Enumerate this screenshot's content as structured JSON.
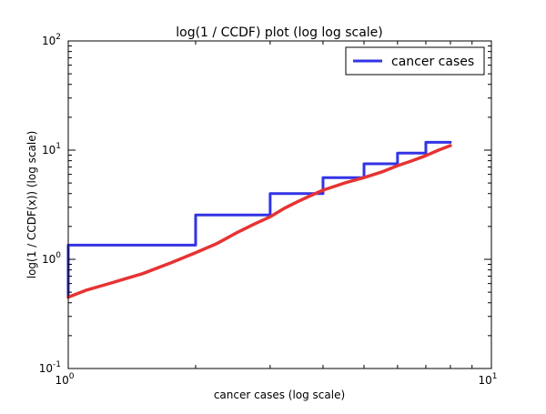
{
  "chart_data": {
    "type": "line",
    "title": "log(1 / CCDF) plot (log log scale)",
    "xlabel": "cancer cases (log scale)",
    "ylabel": "log(1 / CCDF(x)) (log scale)",
    "xscale": "log",
    "yscale": "log",
    "xlim": [
      1,
      10
    ],
    "ylim": [
      0.1,
      100
    ],
    "grid": false,
    "legend_position": "top-right",
    "x_ticks": [
      {
        "value": 1,
        "base": "10",
        "exp": "0"
      },
      {
        "value": 10,
        "base": "10",
        "exp": "1"
      }
    ],
    "y_ticks": [
      {
        "value": 0.1,
        "base": "10",
        "exp": "-1"
      },
      {
        "value": 1,
        "base": "10",
        "exp": "0"
      },
      {
        "value": 10,
        "base": "10",
        "exp": "1"
      },
      {
        "value": 100,
        "base": "10",
        "exp": "2"
      }
    ],
    "series": [
      {
        "name": "cancer cases",
        "color": "#3333e6",
        "style": "step",
        "x": [
          1,
          1,
          2,
          2,
          3,
          3,
          4,
          4,
          5,
          5,
          6,
          6,
          7,
          7,
          8
        ],
        "y": [
          0.45,
          1.35,
          1.35,
          2.55,
          2.55,
          4.0,
          4.0,
          5.6,
          5.6,
          7.5,
          7.5,
          9.4,
          9.4,
          11.8,
          11.8
        ]
      },
      {
        "color": "#e63333",
        "style": "line",
        "x": [
          1,
          1.1,
          1.25,
          1.5,
          1.75,
          2,
          2.25,
          2.5,
          2.75,
          3,
          3.25,
          3.5,
          3.75,
          4,
          4.5,
          5,
          5.5,
          6,
          6.5,
          7,
          7.5,
          8
        ],
        "y": [
          0.45,
          0.52,
          0.6,
          0.74,
          0.93,
          1.15,
          1.4,
          1.75,
          2.1,
          2.45,
          2.95,
          3.4,
          3.85,
          4.3,
          5.0,
          5.6,
          6.3,
          7.2,
          8.0,
          8.9,
          10.0,
          11.0
        ]
      }
    ]
  }
}
